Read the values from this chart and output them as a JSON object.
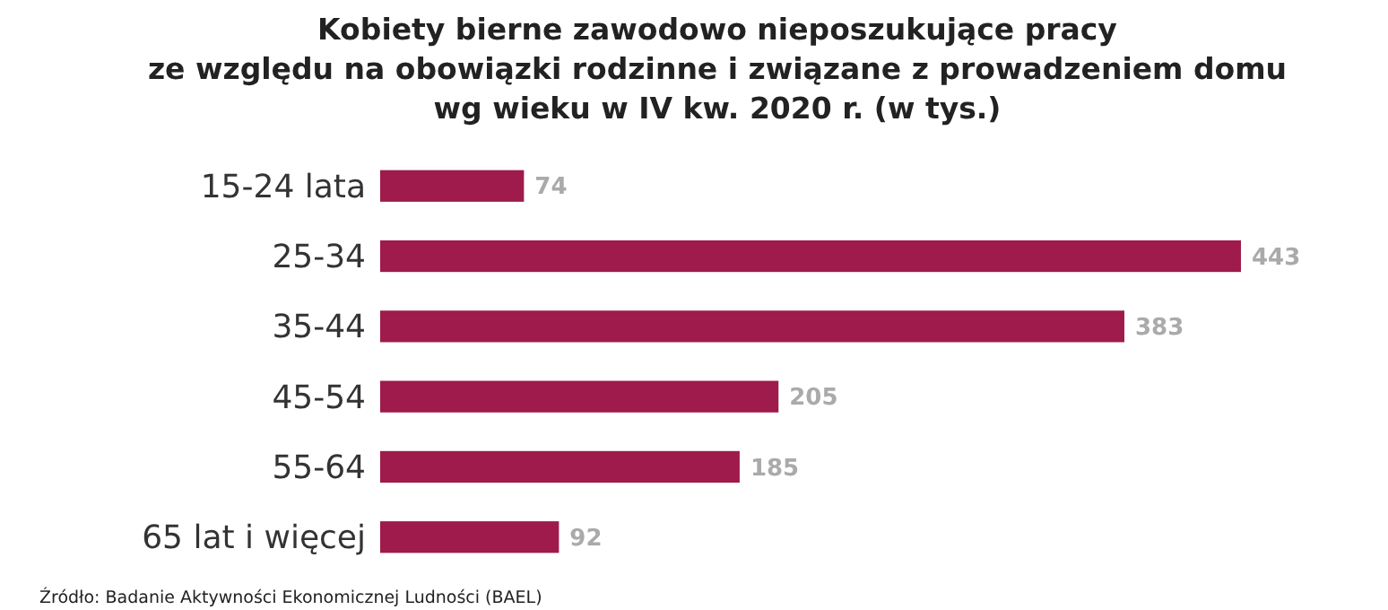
{
  "chart_data": {
    "type": "bar",
    "orientation": "horizontal",
    "title": "Kobiety bierne zawodowo nieposzukujące pracy\nze względu na obowiązki rodzinne i związane z prowadzeniem domu\nwg wieku w IV kw. 2020 r. (w tys.)",
    "categories": [
      "15-24 lata",
      "25-34",
      "35-44",
      "45-54",
      "55-64",
      "65 lat i więcej"
    ],
    "values": [
      74,
      443,
      383,
      205,
      185,
      92
    ],
    "color": "#9e1b4b",
    "data_labels": true,
    "annotations": [
      "Źródło: Badanie Aktywności Ekonomicznej Ludności (BAEL)"
    ]
  }
}
